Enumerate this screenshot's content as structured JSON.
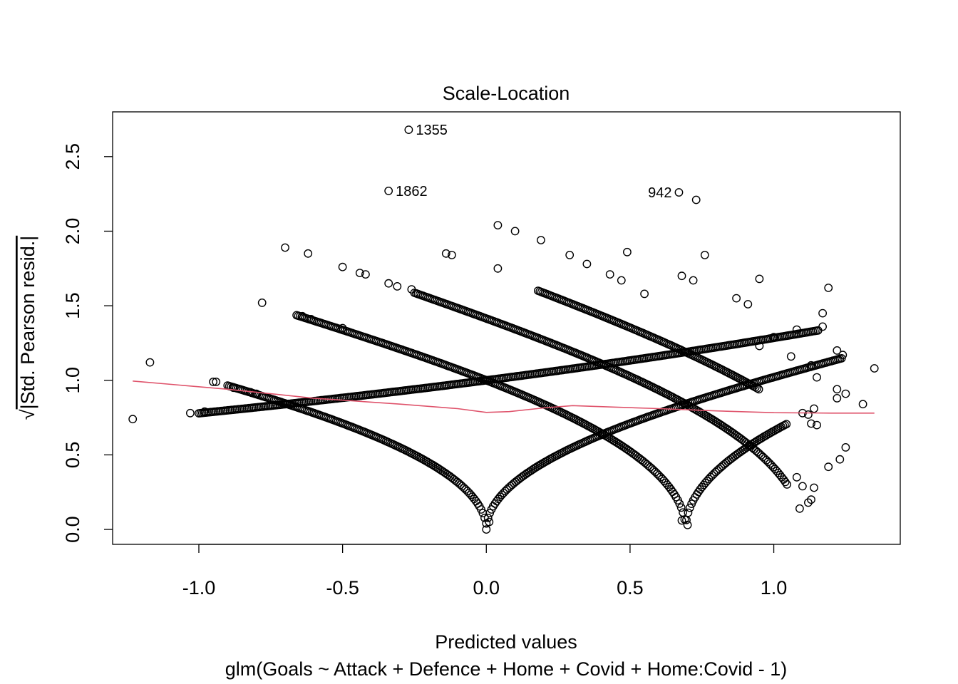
{
  "chart_data": {
    "type": "scatter",
    "title": "Scale-Location",
    "xlabel": "Predicted values",
    "sublabel": "glm(Goals ~ Attack + Defence + Home + Covid + Home:Covid - 1)",
    "ylabel_radical": "√",
    "ylabel": "|Std. Pearson resid.|",
    "xlim": [
      -1.3,
      1.44
    ],
    "ylim": [
      -0.1,
      2.8
    ],
    "x_ticks": [
      -1.0,
      -0.5,
      0.0,
      0.5,
      1.0
    ],
    "x_tick_labels": [
      "-1.0",
      "-0.5",
      "0.0",
      "0.5",
      "1.0"
    ],
    "y_ticks": [
      0.0,
      0.5,
      1.0,
      1.5,
      2.0,
      2.5
    ],
    "y_tick_labels": [
      "0.0",
      "0.5",
      "1.0",
      "1.5",
      "2.0",
      "2.5"
    ],
    "grid": false,
    "point_style": "open-circle",
    "smoother_color": "#DF536B",
    "labeled_points": [
      {
        "label": "1355",
        "x": -0.27,
        "y": 2.68,
        "side": "right"
      },
      {
        "label": "1862",
        "x": -0.34,
        "y": 2.27,
        "side": "right"
      },
      {
        "label": "942",
        "x": 0.67,
        "y": 2.26,
        "side": "left"
      }
    ],
    "curves": [
      {
        "name": "y=0",
        "y": 0
      },
      {
        "name": "y=1",
        "y": 1
      },
      {
        "name": "y=2",
        "y": 2
      },
      {
        "name": "y=3",
        "y": 3
      },
      {
        "name": "y=4",
        "y": 4
      }
    ],
    "extra_points": [
      [
        -1.23,
        0.74
      ],
      [
        -1.17,
        1.12
      ],
      [
        -0.78,
        1.52
      ],
      [
        -0.7,
        1.89
      ],
      [
        -0.62,
        1.85
      ],
      [
        -0.64,
        1.43
      ],
      [
        -0.61,
        1.41
      ],
      [
        -0.94,
        0.99
      ],
      [
        -0.95,
        0.99
      ],
      [
        -0.88,
        0.95
      ],
      [
        -0.82,
        0.92
      ],
      [
        -0.8,
        0.91
      ],
      [
        -0.5,
        1.76
      ],
      [
        -0.44,
        1.72
      ],
      [
        -0.42,
        1.71
      ],
      [
        -0.34,
        1.65
      ],
      [
        -0.31,
        1.63
      ],
      [
        -0.26,
        1.61
      ],
      [
        -0.5,
        1.35
      ],
      [
        0.04,
        2.04
      ],
      [
        0.1,
        2.0
      ],
      [
        0.19,
        1.94
      ],
      [
        -0.14,
        1.85
      ],
      [
        -0.12,
        1.84
      ],
      [
        0.04,
        1.75
      ],
      [
        0.29,
        1.84
      ],
      [
        0.35,
        1.78
      ],
      [
        0.49,
        1.86
      ],
      [
        0.43,
        1.71
      ],
      [
        0.47,
        1.67
      ],
      [
        0.55,
        1.58
      ],
      [
        0.73,
        2.21
      ],
      [
        0.76,
        1.84
      ],
      [
        0.68,
        1.7
      ],
      [
        0.72,
        1.67
      ],
      [
        0.87,
        1.55
      ],
      [
        0.91,
        1.51
      ],
      [
        0.95,
        1.68
      ],
      [
        1.19,
        1.62
      ],
      [
        1.17,
        1.45
      ],
      [
        1.17,
        1.36
      ],
      [
        1.22,
        1.2
      ],
      [
        1.24,
        1.17
      ],
      [
        1.35,
        1.08
      ],
      [
        0.95,
        1.23
      ],
      [
        1.0,
        1.29
      ],
      [
        1.08,
        1.34
      ],
      [
        1.06,
        1.16
      ],
      [
        1.13,
        1.1
      ],
      [
        1.15,
        1.02
      ],
      [
        1.22,
        0.94
      ],
      [
        1.22,
        0.88
      ],
      [
        1.25,
        0.91
      ],
      [
        1.31,
        0.84
      ],
      [
        1.1,
        0.78
      ],
      [
        1.12,
        0.77
      ],
      [
        1.14,
        0.81
      ],
      [
        1.13,
        0.71
      ],
      [
        1.15,
        0.7
      ],
      [
        1.19,
        0.42
      ],
      [
        1.23,
        0.47
      ],
      [
        1.25,
        0.55
      ],
      [
        1.08,
        0.35
      ],
      [
        1.1,
        0.29
      ],
      [
        1.09,
        0.14
      ],
      [
        1.12,
        0.18
      ],
      [
        1.13,
        0.2
      ],
      [
        1.14,
        0.28
      ],
      [
        -1.03,
        0.78
      ],
      [
        -0.98,
        0.79
      ],
      [
        0.68,
        0.06
      ],
      [
        0.7,
        0.03
      ],
      [
        0.0,
        0.04
      ],
      [
        0.01,
        0.05
      ]
    ]
  }
}
